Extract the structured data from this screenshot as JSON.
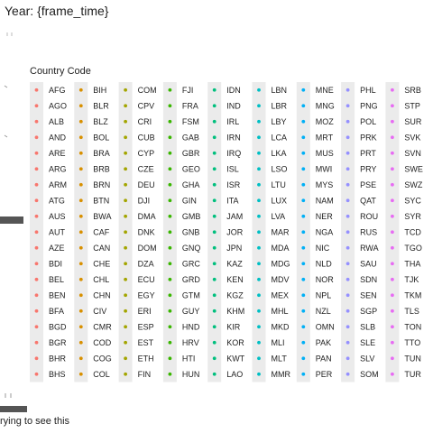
{
  "header": {
    "title": "Year: {frame_time}"
  },
  "footer": {
    "caption": "rying to see this"
  },
  "chart_data": {
    "type": "scatter",
    "title": "Year: {frame_time}",
    "xlabel": "",
    "ylabel": "",
    "legend": {
      "title": "Country Code",
      "placement": "center",
      "columns": [
        {
          "color": "#f8766d",
          "codes": [
            "AFG",
            "AGO",
            "ALB",
            "AND",
            "ARE",
            "ARG",
            "ARM",
            "ATG",
            "AUS",
            "AUT",
            "AZE",
            "BDI",
            "BEL",
            "BEN",
            "BFA",
            "BGD",
            "BGR",
            "BHR",
            "BHS"
          ]
        },
        {
          "color": "#d89000",
          "codes": [
            "BIH",
            "BLR",
            "BLZ",
            "BOL",
            "BRA",
            "BRB",
            "BRN",
            "BTN",
            "BWA",
            "CAF",
            "CAN",
            "CHE",
            "CHL",
            "CHN",
            "CIV",
            "CMR",
            "COD",
            "COG",
            "COL"
          ]
        },
        {
          "color": "#a3a500",
          "codes": [
            "COM",
            "CPV",
            "CRI",
            "CUB",
            "CYP",
            "CZE",
            "DEU",
            "DJI",
            "DMA",
            "DNK",
            "DOM",
            "DZA",
            "ECU",
            "EGY",
            "ERI",
            "ESP",
            "EST",
            "ETH",
            "FIN"
          ]
        },
        {
          "color": "#39b600",
          "codes": [
            "FJI",
            "FRA",
            "FSM",
            "GAB",
            "GBR",
            "GEO",
            "GHA",
            "GIN",
            "GMB",
            "GNB",
            "GNQ",
            "GRC",
            "GRD",
            "GTM",
            "GUY",
            "HND",
            "HRV",
            "HTI",
            "HUN"
          ]
        },
        {
          "color": "#00bf7d",
          "codes": [
            "IDN",
            "IND",
            "IRL",
            "IRN",
            "IRQ",
            "ISL",
            "ISR",
            "ITA",
            "JAM",
            "JOR",
            "JPN",
            "KAZ",
            "KEN",
            "KGZ",
            "KHM",
            "KIR",
            "KOR",
            "KWT",
            "LAO"
          ]
        },
        {
          "color": "#00bfc4",
          "codes": [
            "LBN",
            "LBR",
            "LBY",
            "LCA",
            "LKA",
            "LSO",
            "LTU",
            "LUX",
            "LVA",
            "MAR",
            "MDA",
            "MDG",
            "MDV",
            "MEX",
            "MHL",
            "MKD",
            "MLI",
            "MLT",
            "MMR"
          ]
        },
        {
          "color": "#00b0f6",
          "codes": [
            "MNE",
            "MNG",
            "MOZ",
            "MRT",
            "MUS",
            "MWI",
            "MYS",
            "NAM",
            "NER",
            "NGA",
            "NIC",
            "NLD",
            "NOR",
            "NPL",
            "NZL",
            "OMN",
            "PAK",
            "PAN",
            "PER"
          ]
        },
        {
          "color": "#9590ff",
          "codes": [
            "PHL",
            "PNG",
            "POL",
            "PRK",
            "PRT",
            "PRY",
            "PSE",
            "QAT",
            "ROU",
            "RUS",
            "RWA",
            "SAU",
            "SDN",
            "SEN",
            "SGP",
            "SLB",
            "SLE",
            "SLV",
            "SOM"
          ]
        },
        {
          "color": "#e76bf3",
          "codes": [
            "SRB",
            "STP",
            "SUR",
            "SVK",
            "SVN",
            "SWE",
            "SWZ",
            "SYC",
            "SYR",
            "TCD",
            "TGO",
            "THA",
            "TJK",
            "TKM",
            "TLS",
            "TON",
            "TTO",
            "TUN",
            "TUR"
          ]
        }
      ]
    }
  }
}
